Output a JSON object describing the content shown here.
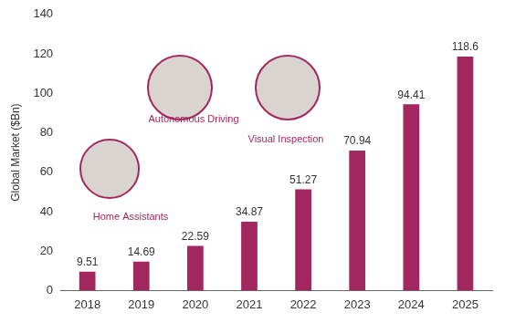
{
  "chart_data": {
    "type": "bar",
    "y_label": "Global Market ($Bn)",
    "categories": [
      "2018",
      "2019",
      "2020",
      "2021",
      "2022",
      "2023",
      "2024",
      "2025"
    ],
    "values": [
      9.51,
      14.69,
      22.59,
      34.87,
      51.27,
      70.94,
      94.41,
      118.6
    ],
    "color": "#a3275f",
    "ylim": [
      0,
      140
    ],
    "yticks": [
      0,
      20,
      40,
      60,
      80,
      100,
      120,
      140
    ],
    "grid": false,
    "data_labels": true,
    "annotations": [
      "Home Assistants",
      "Autonomous Driving",
      "Visual Inspection"
    ]
  }
}
